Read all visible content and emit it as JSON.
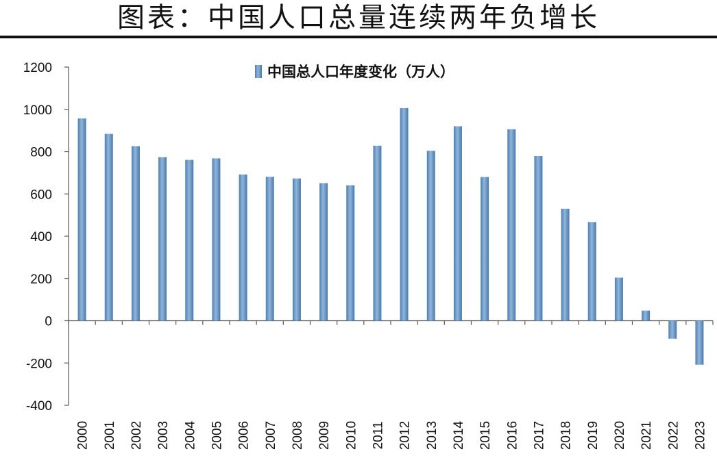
{
  "header": {
    "title": "图表：中国人口总量连续两年负增长"
  },
  "chart_data": {
    "type": "bar",
    "title": "",
    "xlabel": "",
    "ylabel": "",
    "ylim": [
      -400,
      1200
    ],
    "yticks": [
      -400,
      -200,
      0,
      200,
      400,
      600,
      800,
      1000,
      1200
    ],
    "grid": false,
    "legend_position": "top",
    "categories": [
      "2000",
      "2001",
      "2002",
      "2003",
      "2004",
      "2005",
      "2006",
      "2007",
      "2008",
      "2009",
      "2010",
      "2011",
      "2012",
      "2013",
      "2014",
      "2015",
      "2016",
      "2017",
      "2018",
      "2019",
      "2020",
      "2021",
      "2022",
      "2023"
    ],
    "series": [
      {
        "name": "中国总人口年度变化（万人）",
        "color": "#6f9cc9",
        "values": [
          957,
          884,
          826,
          774,
          761,
          768,
          692,
          681,
          673,
          651,
          641,
          828,
          1006,
          804,
          920,
          680,
          906,
          779,
          530,
          467,
          204,
          48,
          -85,
          -208
        ]
      }
    ]
  }
}
